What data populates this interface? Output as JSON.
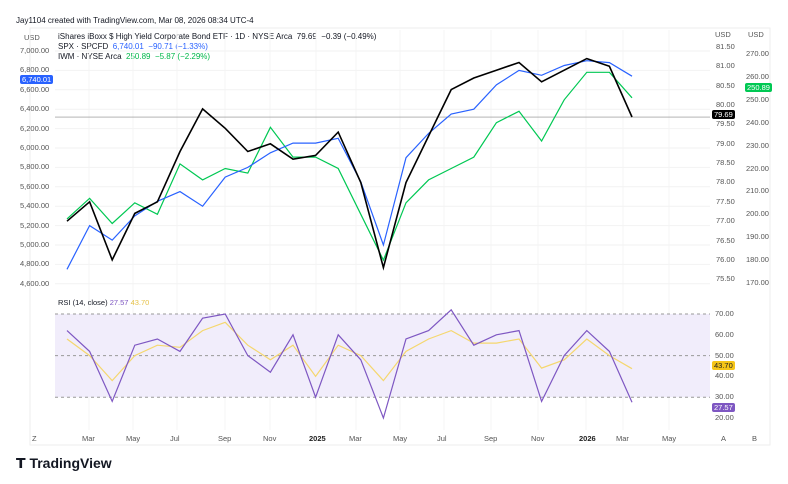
{
  "header": {
    "created": "Jay1104 created with TradingView.com, Mar 08, 2026 08:34 UTC-4",
    "main_symbol": "iShares iBoxx $ High Yield Corporate Bond ETF · 1D · NYSE Arca",
    "main_price": "79.69",
    "main_change": "−0.39 (−0.49%)",
    "spx_label": "SPX · SPCFD",
    "spx_price": "6,740.01",
    "spx_change": "−90.71 (−1.33%)",
    "iwm_label": "IWM · NYSE Arca",
    "iwm_price": "250.89",
    "iwm_change": "−5.87 (−2.29%)"
  },
  "axes": {
    "currency": "USD",
    "left_ticks": [
      "7,000.00",
      "6,800.00",
      "6,600.00",
      "6,400.00",
      "6,200.00",
      "6,000.00",
      "5,800.00",
      "5,600.00",
      "5,400.00",
      "5,200.00",
      "5,000.00",
      "4,800.00",
      "4,600.00"
    ],
    "mid_ticks": [
      "81.50",
      "81.00",
      "80.50",
      "80.00",
      "79.50",
      "79.00",
      "78.50",
      "78.00",
      "77.50",
      "77.00",
      "76.50",
      "76.00",
      "75.50"
    ],
    "right_ticks": [
      "270.00",
      "260.00",
      "250.00",
      "240.00",
      "230.00",
      "220.00",
      "210.00",
      "200.00",
      "190.00",
      "180.00",
      "170.00"
    ],
    "rsi_ticks": [
      "70.00",
      "60.00",
      "50.00",
      "40.00",
      "30.00",
      "20.00"
    ],
    "time_ticks": [
      "Mar",
      "May",
      "Jul",
      "Sep",
      "Nov",
      "2025",
      "Mar",
      "May",
      "Jul",
      "Sep",
      "Nov",
      "2026",
      "Mar",
      "May"
    ],
    "corner_left": "Z",
    "corner_a": "A",
    "corner_b": "B"
  },
  "tags": {
    "spx": "6,740.01",
    "hyg": "79.69",
    "iwm": "250.89",
    "rsi": "27.57",
    "rsi_ma": "43.70"
  },
  "rsi_legend": {
    "label": "RSI (14, close)",
    "value": "27.57",
    "ma": "43.70"
  },
  "logo": "TradingView",
  "colors": {
    "hyg": "#000000",
    "spx": "#2962ff",
    "iwm": "#00c853",
    "rsi": "#7e57c2",
    "rsi_ma": "#f5d76e"
  },
  "chart_data": {
    "type": "line",
    "x": [
      "2024-02",
      "2024-03",
      "2024-04",
      "2024-05",
      "2024-06",
      "2024-07",
      "2024-08",
      "2024-09",
      "2024-10",
      "2024-11",
      "2024-12",
      "2025-01",
      "2025-02",
      "2025-03",
      "2025-04",
      "2025-05",
      "2025-06",
      "2025-07",
      "2025-08",
      "2025-09",
      "2025-10",
      "2025-11",
      "2025-12",
      "2026-01",
      "2026-02",
      "2026-03"
    ],
    "series": [
      {
        "name": "iShares iBoxx $ High Yield Corporate Bond ETF",
        "axis": "middle",
        "values": [
          77.0,
          77.5,
          76.0,
          77.2,
          77.5,
          78.8,
          79.9,
          79.4,
          78.8,
          79.0,
          78.6,
          78.7,
          79.3,
          78.0,
          75.8,
          78.0,
          79.2,
          80.4,
          80.7,
          80.9,
          81.1,
          80.6,
          80.9,
          81.2,
          81.0,
          79.69
        ]
      },
      {
        "name": "SPX",
        "axis": "left",
        "values": [
          4750,
          5200,
          5050,
          5300,
          5450,
          5550,
          5400,
          5700,
          5800,
          5950,
          6050,
          6050,
          6100,
          5650,
          5000,
          5900,
          6150,
          6350,
          6400,
          6650,
          6800,
          6750,
          6850,
          6900,
          6880,
          6740.01
        ]
      },
      {
        "name": "IWM",
        "axis": "right",
        "values": [
          198,
          207,
          196,
          205,
          200,
          222,
          215,
          220,
          218,
          238,
          225,
          225,
          220,
          200,
          180,
          205,
          215,
          220,
          225,
          240,
          245,
          232,
          250,
          262,
          262,
          250.89
        ]
      },
      {
        "name": "RSI (14, close)",
        "pane": "rsi",
        "values": [
          62,
          52,
          28,
          55,
          58,
          52,
          68,
          70,
          50,
          42,
          60,
          30,
          60,
          48,
          20,
          58,
          62,
          72,
          55,
          60,
          62,
          28,
          50,
          62,
          52,
          27.57
        ]
      },
      {
        "name": "RSI MA",
        "pane": "rsi",
        "values": [
          58,
          50,
          38,
          50,
          55,
          54,
          62,
          66,
          55,
          48,
          55,
          40,
          55,
          50,
          38,
          52,
          58,
          62,
          56,
          56,
          58,
          44,
          48,
          58,
          50,
          43.7
        ]
      }
    ],
    "ylim_left": [
      4600,
      7000
    ],
    "ylim_middle": [
      75.5,
      81.5
    ],
    "ylim_right": [
      170,
      270
    ],
    "ylim_rsi": [
      20,
      70
    ],
    "rsi_bands": [
      30,
      50,
      70
    ],
    "grid": true
  }
}
